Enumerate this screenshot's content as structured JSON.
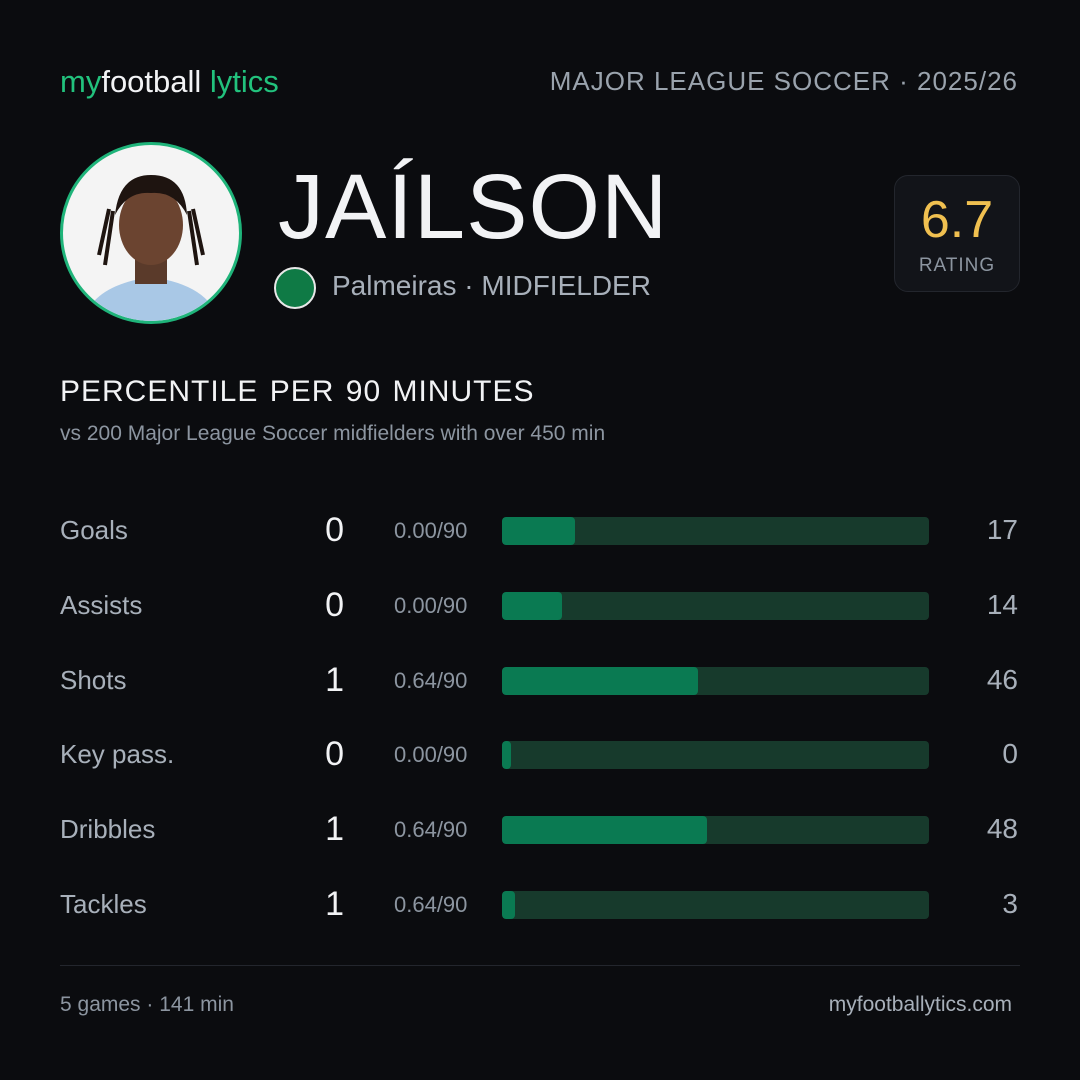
{
  "header": {
    "brand": [
      "my",
      "football",
      "lytics"
    ],
    "league": "MAJOR LEAGUE SOCCER · 2025/26"
  },
  "player": {
    "name": "JAÍLSON",
    "team_position": "Palmeiras · MIDFIELDER",
    "rating": 6.7,
    "rating_label": "RATING"
  },
  "section": {
    "title": [
      "PERCENTILE",
      "PER 90 MINUTES"
    ],
    "subtitle": [
      "vs 200 Major League Soccer midfielders",
      "with over 450 min"
    ]
  },
  "stats": [
    {
      "label": "Goals",
      "total": 0,
      "per90": "0.00/90",
      "percentile": 17
    },
    {
      "label": "Assists",
      "total": 0,
      "per90": "0.00/90",
      "percentile": 14
    },
    {
      "label": "Shots",
      "total": 1,
      "per90": "0.64/90",
      "percentile": 46
    },
    {
      "label": "Key pass.",
      "total": 0,
      "per90": "0.00/90",
      "percentile": 0
    },
    {
      "label": "Dribbles",
      "total": 1,
      "per90": "0.64/90",
      "percentile": 48
    },
    {
      "label": "Tackles",
      "total": 1,
      "per90": "0.64/90",
      "percentile": 3
    }
  ],
  "footer": {
    "summary": "5 games · 141 min",
    "site": "myfootballytics.com"
  }
}
